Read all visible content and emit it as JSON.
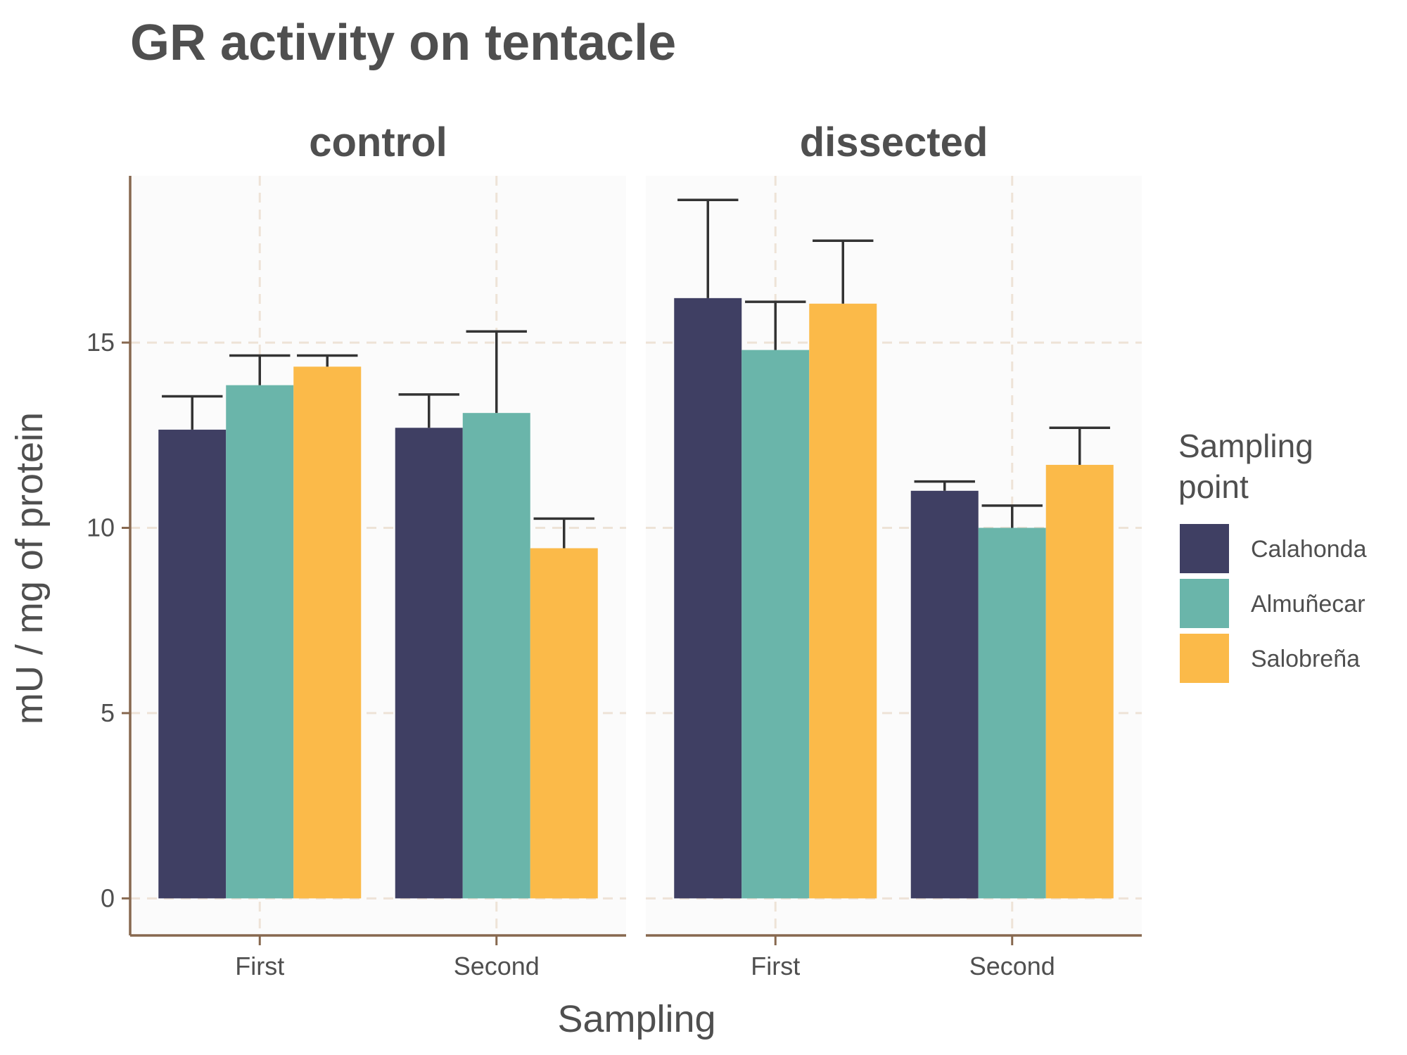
{
  "chart_data": {
    "type": "bar",
    "title": "GR activity on tentacle",
    "xlabel": "Sampling",
    "ylabel": "mU / mg  of protein",
    "panels": [
      "control",
      "dissected"
    ],
    "categories": [
      "First",
      "Second"
    ],
    "legend": {
      "title_lines": [
        "Sampling",
        "point"
      ],
      "placement": "right"
    },
    "ylim": [
      -1,
      19.5
    ],
    "yticks": [
      0,
      5,
      10,
      15
    ],
    "grid": true,
    "error_bars": "upper",
    "series": [
      {
        "name": "Calahonda",
        "color": "#3f3f63",
        "values": {
          "control": [
            12.65,
            12.7
          ],
          "dissected": [
            16.2,
            11.0
          ]
        },
        "errors": {
          "control": [
            0.9,
            0.9
          ],
          "dissected": [
            2.65,
            0.25
          ]
        }
      },
      {
        "name": "Almuñecar",
        "color": "#6ab5aa",
        "values": {
          "control": [
            13.85,
            13.1
          ],
          "dissected": [
            14.8,
            10.0
          ]
        },
        "errors": {
          "control": [
            0.8,
            2.2
          ],
          "dissected": [
            1.3,
            0.6
          ]
        }
      },
      {
        "name": "Salobreña",
        "color": "#fbba49",
        "values": {
          "control": [
            14.35,
            9.45
          ],
          "dissected": [
            16.05,
            11.7
          ]
        },
        "errors": {
          "control": [
            0.3,
            0.8
          ],
          "dissected": [
            1.7,
            1.0
          ]
        }
      }
    ],
    "colors": {
      "panel_background": "#fbfbfb",
      "grid": "#eee3d7",
      "axis_line": "#87684f",
      "error_bar": "#333333",
      "text": "#4f4f4f"
    }
  }
}
